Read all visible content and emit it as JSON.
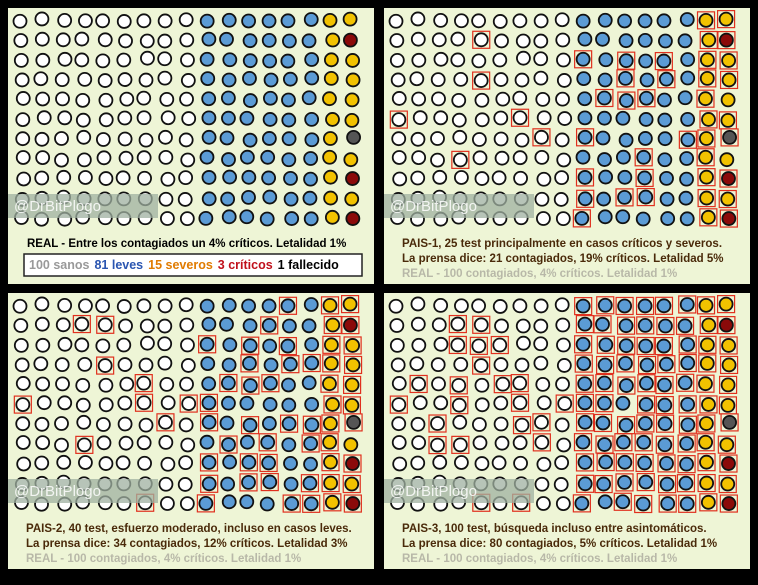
{
  "watermark": "@DrBitPlogo",
  "panels": [
    {
      "lines": [
        "REAL - Entre los contagiados un 4% críticos. Letalidad 1%"
      ],
      "legend": [
        "100 sanos",
        "81 leves",
        "15 severos",
        "3 críticos",
        "1 fallecido"
      ]
    },
    {
      "lines": [
        "PAIS-1, 25 test principalmente en casos críticos y severos.",
        "La prensa dice: 21 contagiados, 19% críticos. Letalidad 5%",
        "REAL - 100 contagiados, 4% críticos. Letalidad 1%"
      ]
    },
    {
      "lines": [
        "PAIS-2, 40 test, esfuerzo moderado, incluso en casos leves.",
        "La prensa dice: 34 contagiados, 12% críticos. Letalidad 3%",
        "REAL - 100 contagiados, 4% críticos. Letalidad 1%"
      ]
    },
    {
      "lines": [
        "PAIS-3, 100 test, búsqueda incluso entre asintomáticos.",
        "La prensa dice: 80 contagiados, 5% críticos. Letalidad 1%",
        "REAL - 100 contagiados, 4% críticos. Letalidad 1%"
      ]
    }
  ]
}
